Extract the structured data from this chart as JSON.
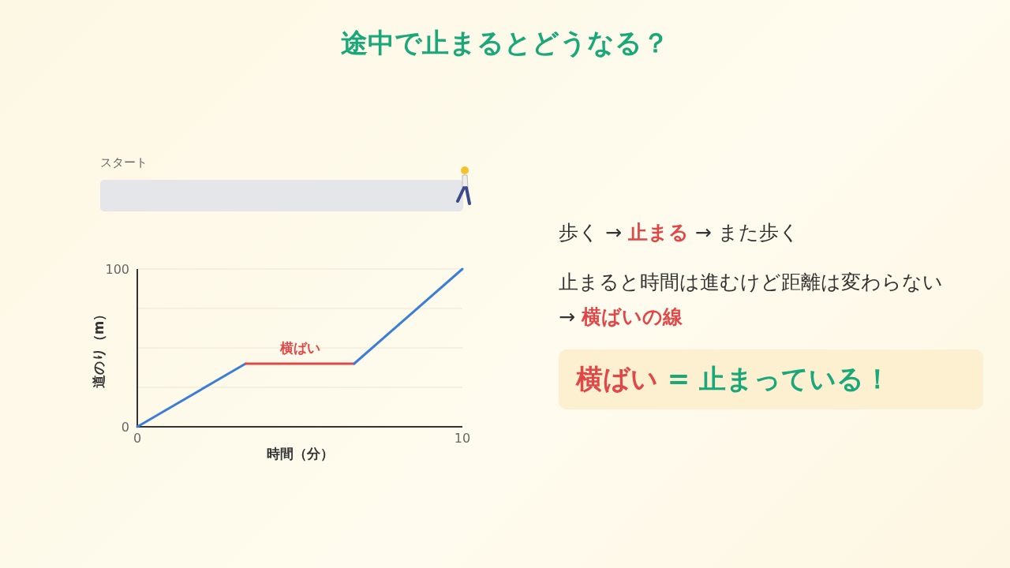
{
  "chart_data": {
    "type": "line",
    "title": "途中で止まるとどうなる？",
    "xlabel": "時間（分）",
    "ylabel": "道のり（m）",
    "series": [
      {
        "color": "#3b7dd8",
        "x": [
          0,
          3.33
        ],
        "values": [
          0,
          40
        ]
      },
      {
        "color": "#e04848",
        "x": [
          3.33,
          6.67
        ],
        "values": [
          40,
          40
        ]
      },
      {
        "color": "#3b7dd8",
        "x": [
          6.67,
          10
        ],
        "values": [
          40,
          100
        ]
      }
    ],
    "xlim": [
      0,
      10
    ],
    "ylim": [
      0,
      100
    ],
    "xticks": [
      0,
      10
    ],
    "yticks": [
      0,
      {
        "value": 25,
        "label": null
      },
      {
        "value": 50,
        "label": null
      },
      {
        "value": 75,
        "label": null
      },
      100
    ],
    "grid": "y",
    "marker": "none",
    "line_style": "solid",
    "annotations": [
      {
        "text": "横ばい",
        "x": 5,
        "y": 40
      },
      "スタート",
      "歩く → **止まる** → また歩く",
      "止まると時間は進むけど距離は変わらない",
      "→ **横ばいの線**",
      "**横ばい** = 止まっている！"
    ]
  }
}
